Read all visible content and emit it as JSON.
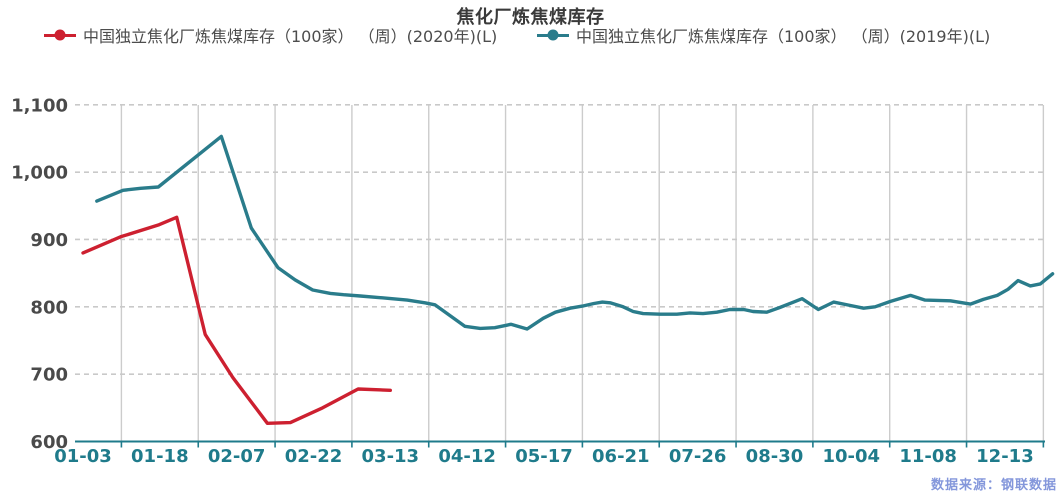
{
  "chart_data": {
    "type": "line",
    "title": "焦化厂炼焦煤库存",
    "source": "数据来源：钢联数据",
    "x_tick_labels": [
      "01-03",
      "01-18",
      "02-07",
      "02-22",
      "03-13",
      "04-12",
      "05-17",
      "06-21",
      "07-26",
      "08-30",
      "10-04",
      "11-08",
      "12-13"
    ],
    "x_note": "x values are tick-index units: 0 = 01-03, 1 = 01-18 ... 12 = 12-13 (weekly series)",
    "ylim": [
      600,
      1100
    ],
    "y_ticks": [
      {
        "value": 600,
        "label": "600"
      },
      {
        "value": 700,
        "label": "700"
      },
      {
        "value": 800,
        "label": "800"
      },
      {
        "value": 900,
        "label": "900"
      },
      {
        "value": 1000,
        "label": "1,000"
      },
      {
        "value": 1100,
        "label": "1,100"
      }
    ],
    "grid": {
      "horizontal": "dashed",
      "vertical": "solid at tick boundaries"
    },
    "legend_position": "top",
    "series": [
      {
        "name": "中国独立焦化厂炼焦煤库存（100家）  （周）(2020年)(L)",
        "color": "#cd2030",
        "points": [
          [
            0,
            880
          ],
          [
            0.49,
            904
          ],
          [
            0.99,
            922
          ],
          [
            1.22,
            933
          ],
          [
            1.59,
            759
          ],
          [
            1.95,
            695
          ],
          [
            2.4,
            627
          ],
          [
            2.7,
            628
          ],
          [
            3.12,
            650
          ],
          [
            3.58,
            678
          ],
          [
            4,
            676
          ]
        ]
      },
      {
        "name": "中国独立焦化厂炼焦煤库存（100家）  （周）(2019年)(L)",
        "color": "#2a7c8b",
        "points": [
          [
            0.18,
            957
          ],
          [
            0.52,
            973
          ],
          [
            0.75,
            976
          ],
          [
            0.98,
            978
          ],
          [
            1.8,
            1053
          ],
          [
            2.19,
            917
          ],
          [
            2.54,
            858
          ],
          [
            2.76,
            840
          ],
          [
            2.99,
            825
          ],
          [
            3.22,
            820
          ],
          [
            3.39,
            818
          ],
          [
            3.61,
            816
          ],
          [
            3.83,
            814
          ],
          [
            4.02,
            812
          ],
          [
            4.22,
            810
          ],
          [
            4.45,
            806
          ],
          [
            4.58,
            803
          ],
          [
            4.97,
            771
          ],
          [
            5.17,
            768
          ],
          [
            5.36,
            769
          ],
          [
            5.57,
            774
          ],
          [
            5.78,
            767
          ],
          [
            5.99,
            783
          ],
          [
            6.15,
            792
          ],
          [
            6.34,
            798
          ],
          [
            6.5,
            801
          ],
          [
            6.65,
            805
          ],
          [
            6.76,
            807
          ],
          [
            6.86,
            806
          ],
          [
            7.03,
            800
          ],
          [
            7.16,
            793
          ],
          [
            7.29,
            790
          ],
          [
            7.51,
            789
          ],
          [
            7.73,
            789
          ],
          [
            7.9,
            791
          ],
          [
            8.07,
            790
          ],
          [
            8.25,
            792
          ],
          [
            8.42,
            796
          ],
          [
            8.6,
            796
          ],
          [
            8.72,
            793
          ],
          [
            8.9,
            792
          ],
          [
            9.07,
            799
          ],
          [
            9.27,
            808
          ],
          [
            9.36,
            812
          ],
          [
            9.57,
            796
          ],
          [
            9.77,
            807
          ],
          [
            9.99,
            802
          ],
          [
            10.16,
            798
          ],
          [
            10.31,
            800
          ],
          [
            10.51,
            808
          ],
          [
            10.77,
            817
          ],
          [
            10.96,
            810
          ],
          [
            11.29,
            809
          ],
          [
            11.55,
            804
          ],
          [
            11.72,
            811
          ],
          [
            11.9,
            817
          ],
          [
            12.04,
            826
          ],
          [
            12.17,
            839
          ],
          [
            12.33,
            831
          ],
          [
            12.46,
            834
          ],
          [
            12.62,
            849
          ]
        ]
      }
    ],
    "colors": {
      "x_axis": "#1f7b8b",
      "y_label": "#4a4a4a",
      "grid": "#cccccc",
      "title": "#3a3a3a",
      "legend_text": "#4d4d4d",
      "watermark": "#7e92da",
      "background": "#ffffff"
    }
  }
}
